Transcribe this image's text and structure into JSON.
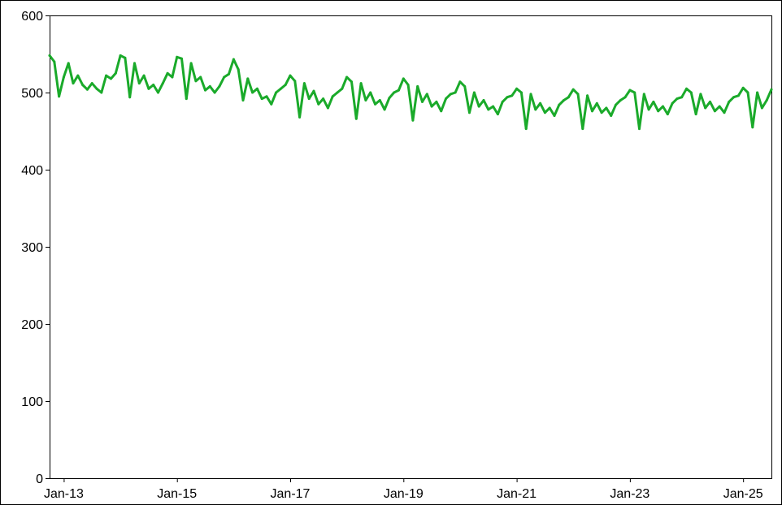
{
  "chart_data": {
    "type": "line",
    "title": "",
    "xlabel": "",
    "ylabel": "",
    "ylim": [
      0,
      600
    ],
    "xlim": [
      "2012-10",
      "2025-07"
    ],
    "y_ticks": [
      "0",
      "100",
      "200",
      "300",
      "400",
      "500",
      "600"
    ],
    "x_ticks": [
      {
        "label": "Jan-13",
        "date": "2013-01"
      },
      {
        "label": "Jan-15",
        "date": "2015-01"
      },
      {
        "label": "Jan-17",
        "date": "2017-01"
      },
      {
        "label": "Jan-19",
        "date": "2019-01"
      },
      {
        "label": "Jan-21",
        "date": "2021-01"
      },
      {
        "label": "Jan-23",
        "date": "2023-01"
      },
      {
        "label": "Jan-25",
        "date": "2025-01"
      }
    ],
    "grid": false,
    "legend": "none",
    "series": [
      {
        "color": "#1aaa2a",
        "points": [
          [
            "2012-10",
            548
          ],
          [
            "2012-11",
            540
          ],
          [
            "2012-12",
            495
          ],
          [
            "2013-01",
            520
          ],
          [
            "2013-02",
            538
          ],
          [
            "2013-03",
            512
          ],
          [
            "2013-04",
            522
          ],
          [
            "2013-05",
            510
          ],
          [
            "2013-06",
            504
          ],
          [
            "2013-07",
            512
          ],
          [
            "2013-08",
            505
          ],
          [
            "2013-09",
            500
          ],
          [
            "2013-10",
            522
          ],
          [
            "2013-11",
            518
          ],
          [
            "2013-12",
            525
          ],
          [
            "2014-01",
            548
          ],
          [
            "2014-02",
            545
          ],
          [
            "2014-03",
            494
          ],
          [
            "2014-04",
            538
          ],
          [
            "2014-05",
            512
          ],
          [
            "2014-06",
            522
          ],
          [
            "2014-07",
            505
          ],
          [
            "2014-08",
            510
          ],
          [
            "2014-09",
            500
          ],
          [
            "2014-10",
            512
          ],
          [
            "2014-11",
            525
          ],
          [
            "2014-12",
            520
          ],
          [
            "2015-01",
            546
          ],
          [
            "2015-02",
            544
          ],
          [
            "2015-03",
            492
          ],
          [
            "2015-04",
            538
          ],
          [
            "2015-05",
            515
          ],
          [
            "2015-06",
            520
          ],
          [
            "2015-07",
            503
          ],
          [
            "2015-08",
            508
          ],
          [
            "2015-09",
            500
          ],
          [
            "2015-10",
            508
          ],
          [
            "2015-11",
            520
          ],
          [
            "2015-12",
            524
          ],
          [
            "2016-01",
            543
          ],
          [
            "2016-02",
            530
          ],
          [
            "2016-03",
            490
          ],
          [
            "2016-04",
            518
          ],
          [
            "2016-05",
            500
          ],
          [
            "2016-06",
            505
          ],
          [
            "2016-07",
            492
          ],
          [
            "2016-08",
            495
          ],
          [
            "2016-09",
            485
          ],
          [
            "2016-10",
            500
          ],
          [
            "2016-11",
            505
          ],
          [
            "2016-12",
            510
          ],
          [
            "2017-01",
            522
          ],
          [
            "2017-02",
            515
          ],
          [
            "2017-03",
            468
          ],
          [
            "2017-04",
            512
          ],
          [
            "2017-05",
            492
          ],
          [
            "2017-06",
            502
          ],
          [
            "2017-07",
            485
          ],
          [
            "2017-08",
            492
          ],
          [
            "2017-09",
            480
          ],
          [
            "2017-10",
            495
          ],
          [
            "2017-11",
            500
          ],
          [
            "2017-12",
            505
          ],
          [
            "2018-01",
            520
          ],
          [
            "2018-02",
            514
          ],
          [
            "2018-03",
            466
          ],
          [
            "2018-04",
            512
          ],
          [
            "2018-05",
            490
          ],
          [
            "2018-06",
            500
          ],
          [
            "2018-07",
            485
          ],
          [
            "2018-08",
            490
          ],
          [
            "2018-09",
            478
          ],
          [
            "2018-10",
            493
          ],
          [
            "2018-11",
            500
          ],
          [
            "2018-12",
            503
          ],
          [
            "2019-01",
            518
          ],
          [
            "2019-02",
            510
          ],
          [
            "2019-03",
            464
          ],
          [
            "2019-04",
            508
          ],
          [
            "2019-05",
            488
          ],
          [
            "2019-06",
            498
          ],
          [
            "2019-07",
            482
          ],
          [
            "2019-08",
            488
          ],
          [
            "2019-09",
            476
          ],
          [
            "2019-10",
            492
          ],
          [
            "2019-11",
            498
          ],
          [
            "2019-12",
            500
          ],
          [
            "2020-01",
            514
          ],
          [
            "2020-02",
            508
          ],
          [
            "2020-03",
            474
          ],
          [
            "2020-04",
            500
          ],
          [
            "2020-05",
            482
          ],
          [
            "2020-06",
            490
          ],
          [
            "2020-07",
            478
          ],
          [
            "2020-08",
            482
          ],
          [
            "2020-09",
            472
          ],
          [
            "2020-10",
            488
          ],
          [
            "2020-11",
            494
          ],
          [
            "2020-12",
            496
          ],
          [
            "2021-01",
            505
          ],
          [
            "2021-02",
            500
          ],
          [
            "2021-03",
            453
          ],
          [
            "2021-04",
            498
          ],
          [
            "2021-05",
            478
          ],
          [
            "2021-06",
            486
          ],
          [
            "2021-07",
            474
          ],
          [
            "2021-08",
            480
          ],
          [
            "2021-09",
            470
          ],
          [
            "2021-10",
            484
          ],
          [
            "2021-11",
            490
          ],
          [
            "2021-12",
            494
          ],
          [
            "2022-01",
            504
          ],
          [
            "2022-02",
            498
          ],
          [
            "2022-03",
            453
          ],
          [
            "2022-04",
            496
          ],
          [
            "2022-05",
            476
          ],
          [
            "2022-06",
            486
          ],
          [
            "2022-07",
            474
          ],
          [
            "2022-08",
            480
          ],
          [
            "2022-09",
            470
          ],
          [
            "2022-10",
            484
          ],
          [
            "2022-11",
            490
          ],
          [
            "2022-12",
            494
          ],
          [
            "2023-01",
            503
          ],
          [
            "2023-02",
            500
          ],
          [
            "2023-03",
            453
          ],
          [
            "2023-04",
            498
          ],
          [
            "2023-05",
            478
          ],
          [
            "2023-06",
            488
          ],
          [
            "2023-07",
            476
          ],
          [
            "2023-08",
            482
          ],
          [
            "2023-09",
            472
          ],
          [
            "2023-10",
            486
          ],
          [
            "2023-11",
            492
          ],
          [
            "2023-12",
            494
          ],
          [
            "2024-01",
            505
          ],
          [
            "2024-02",
            500
          ],
          [
            "2024-03",
            472
          ],
          [
            "2024-04",
            498
          ],
          [
            "2024-05",
            480
          ],
          [
            "2024-06",
            488
          ],
          [
            "2024-07",
            476
          ],
          [
            "2024-08",
            482
          ],
          [
            "2024-09",
            474
          ],
          [
            "2024-10",
            488
          ],
          [
            "2024-11",
            494
          ],
          [
            "2024-12",
            496
          ],
          [
            "2025-01",
            506
          ],
          [
            "2025-02",
            500
          ],
          [
            "2025-03",
            455
          ],
          [
            "2025-04",
            500
          ],
          [
            "2025-05",
            480
          ],
          [
            "2025-06",
            490
          ],
          [
            "2025-07",
            504
          ]
        ]
      }
    ]
  }
}
